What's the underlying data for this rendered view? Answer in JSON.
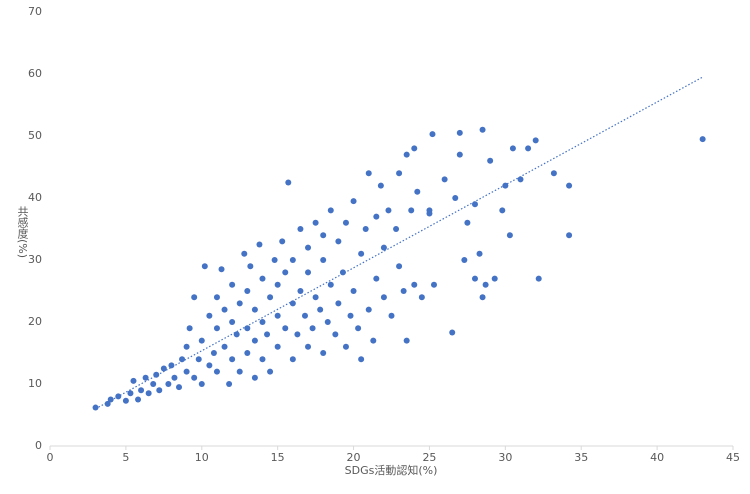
{
  "chart_data": {
    "type": "scatter",
    "x_label": "SDGs活動認知(%)",
    "y_label": "共感度(%)",
    "color": "#4472c4",
    "xlim": [
      0,
      45
    ],
    "xticks": [
      0,
      5,
      10,
      15,
      20,
      25,
      30,
      35,
      40,
      45
    ],
    "ylim": [
      0,
      70
    ],
    "yticks": [
      0,
      10,
      20,
      30,
      40,
      50,
      60,
      70
    ],
    "grid": false,
    "x": [
      3,
      3.8,
      4,
      4.5,
      5,
      5.3,
      5.5,
      5.8,
      6,
      6.3,
      6.5,
      6.8,
      7,
      7.2,
      7.5,
      7.8,
      8,
      8.2,
      8.5,
      8.7,
      9,
      9,
      9.2,
      9.5,
      9.5,
      9.8,
      10,
      10,
      10.2,
      10.5,
      10.5,
      10.8,
      11,
      11,
      11,
      11.3,
      11.5,
      11.5,
      11.8,
      12,
      12,
      12,
      12.3,
      12.5,
      12.5,
      12.8,
      13,
      13,
      13,
      13.2,
      13.5,
      13.5,
      13.5,
      13.8,
      14,
      14,
      14,
      14.3,
      14.5,
      14.5,
      14.8,
      15,
      15,
      15,
      15.3,
      15.5,
      15.5,
      15.7,
      16,
      16,
      16,
      16.3,
      16.5,
      16.5,
      16.8,
      17,
      17,
      17,
      17.3,
      17.5,
      17.5,
      17.8,
      18,
      18,
      18,
      18.3,
      18.5,
      18.5,
      18.8,
      19,
      19,
      19.3,
      19.5,
      19.5,
      19.8,
      20,
      20,
      20.3,
      20.5,
      20.5,
      20.8,
      21,
      21,
      21.3,
      21.5,
      21.5,
      21.8,
      22,
      22,
      22.3,
      22.5,
      22.8,
      23,
      23,
      23.3,
      23.5,
      23.5,
      23.8,
      24,
      24,
      24.2,
      24.5,
      25,
      25,
      25.2,
      25.3,
      26,
      26.5,
      26.7,
      27,
      27,
      27.3,
      27.5,
      28,
      28,
      28.5,
      28.3,
      28.5,
      28.7,
      29,
      29.3,
      29.8,
      30,
      30.3,
      30.5,
      31,
      31.5,
      32,
      32.2,
      33.2,
      34.2,
      34.2,
      43
    ],
    "y": [
      6.2,
      6.8,
      7.5,
      8,
      7.3,
      8.5,
      10.5,
      7.5,
      9,
      11,
      8.5,
      10,
      11.5,
      9,
      12.5,
      10,
      13,
      11,
      9.5,
      14,
      12,
      16,
      19,
      11,
      24,
      14,
      10,
      17,
      29,
      13,
      21,
      15,
      12,
      19,
      24,
      28.5,
      16,
      22,
      10,
      14,
      20,
      26,
      18,
      12,
      23,
      31,
      15,
      19,
      25,
      29,
      11,
      17,
      22,
      32.5,
      14,
      20,
      27,
      18,
      12,
      24,
      30,
      16,
      21,
      26,
      33,
      19,
      28,
      42.5,
      14,
      23,
      30,
      18,
      25,
      35,
      21,
      16,
      28,
      32,
      19,
      24,
      36,
      22,
      15,
      30,
      34,
      20,
      26,
      38,
      18,
      23,
      33,
      28,
      16,
      36,
      21,
      25,
      39.5,
      19,
      31,
      14,
      35,
      44,
      22,
      17,
      37,
      27,
      42,
      32,
      24,
      38,
      21,
      35,
      44,
      29,
      25,
      17,
      47,
      38,
      48,
      26,
      41,
      24,
      38,
      37.5,
      50.3,
      26,
      43,
      18.3,
      40,
      50.5,
      47,
      30,
      36,
      39,
      27,
      51,
      31,
      24,
      26,
      46,
      27,
      38,
      42,
      34,
      48,
      43,
      48,
      49.3,
      27,
      44,
      42,
      34,
      49.5
    ],
    "trendline": {
      "x": [
        3,
        43
      ],
      "y": [
        6,
        59.5
      ]
    }
  }
}
